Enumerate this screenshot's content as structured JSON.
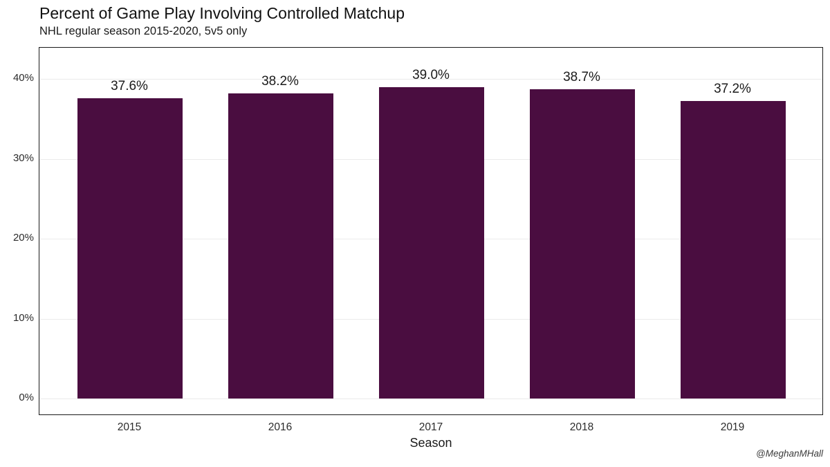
{
  "header": {
    "title": "Percent of Game Play Involving Controlled Matchup",
    "subtitle": "NHL regular season 2015-2020, 5v5 only"
  },
  "chart_data": {
    "type": "bar",
    "title": "Percent of Game Play Involving Controlled Matchup",
    "subtitle": "NHL regular season 2015-2020, 5v5 only",
    "categories": [
      "2015",
      "2016",
      "2017",
      "2018",
      "2019"
    ],
    "values": [
      37.6,
      38.2,
      39.0,
      38.7,
      37.2
    ],
    "bar_labels": [
      "37.6%",
      "38.2%",
      "39.0%",
      "38.7%",
      "37.2%"
    ],
    "xlabel": "Season",
    "ylabel": "",
    "y_tick_labels": [
      "0%",
      "10%",
      "20%",
      "30%",
      "40%"
    ],
    "y_tick_values": [
      0,
      10,
      20,
      30,
      40
    ],
    "ylim": [
      -2.2,
      43.9
    ],
    "grid": "horizontal",
    "legend": "none",
    "bar_color": "#4A0D40",
    "panel_border_color": "#1a1a1a",
    "gridline_color": "#ebebeb"
  },
  "footer": {
    "caption": "@MeghanMHall"
  }
}
